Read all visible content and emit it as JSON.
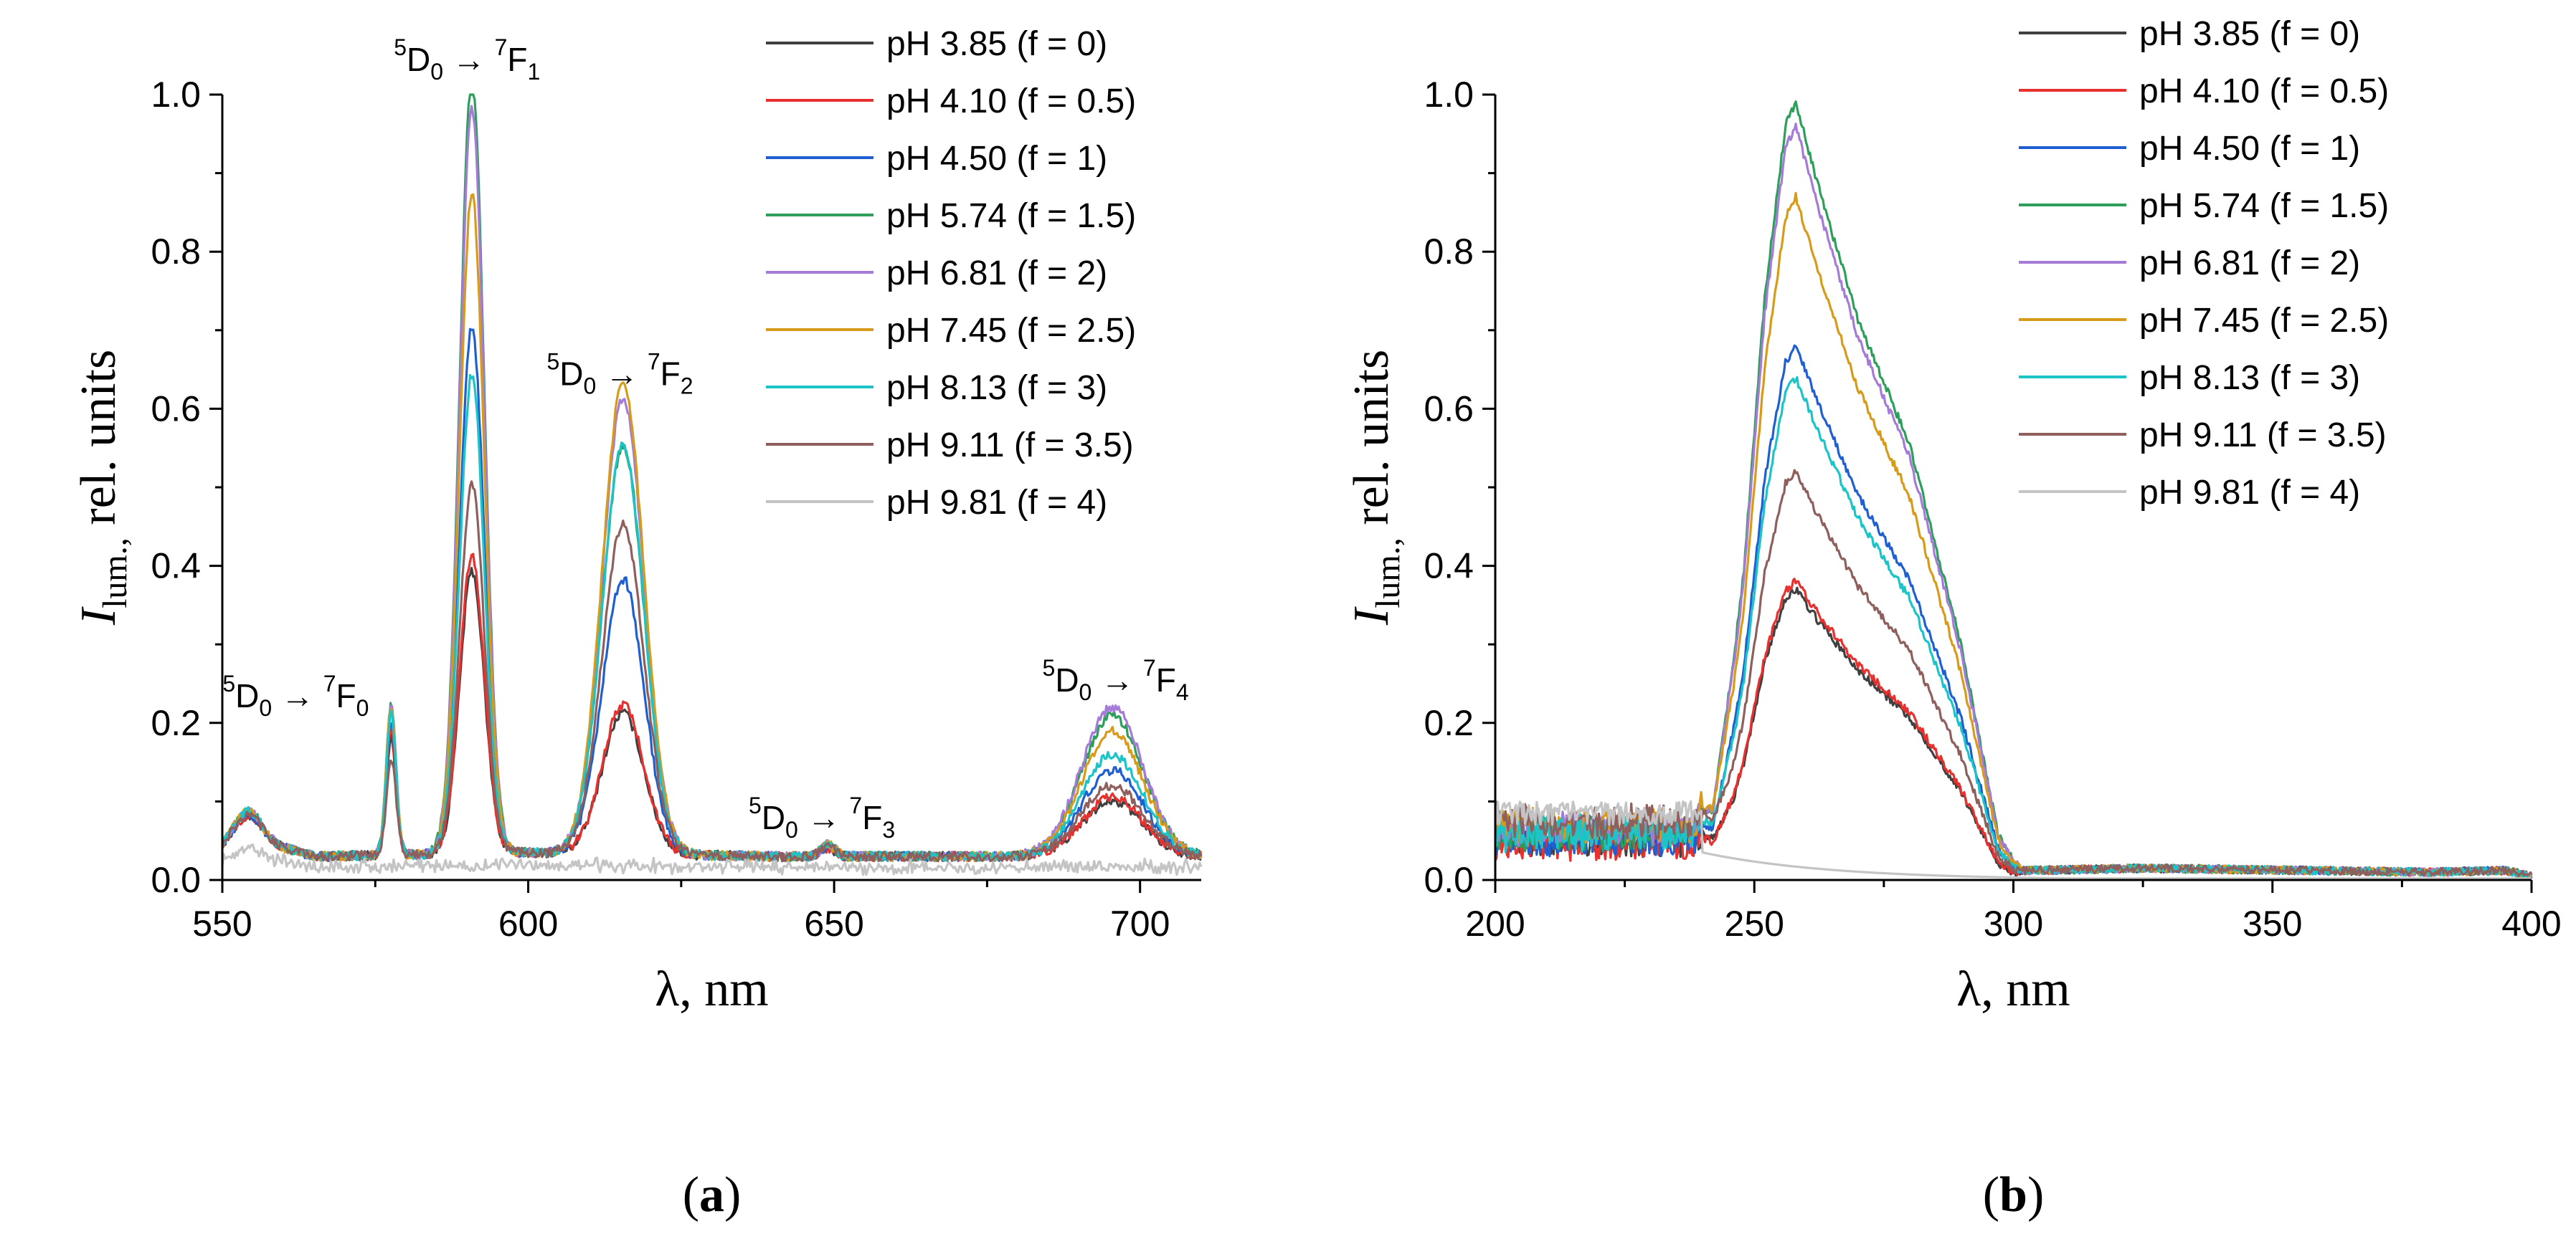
{
  "chart_data": [
    {
      "type": "line",
      "panel_label": "(a)",
      "xlabel": "λ, nm",
      "ylabel": {
        "symbol": "I",
        "subscript": "lum.,",
        "rest": "rel. units"
      },
      "xlim": [
        550,
        710
      ],
      "ylim": [
        0,
        1.0
      ],
      "xticks": [
        550,
        600,
        650,
        700
      ],
      "yticks": [
        0.0,
        0.2,
        0.4,
        0.6,
        0.8,
        1.0
      ],
      "tick_labels_x": [
        "550",
        "600",
        "650",
        "700"
      ],
      "tick_labels_y": [
        "0.0",
        "0.2",
        "0.4",
        "0.6",
        "0.8",
        "1.0"
      ],
      "grid": false,
      "legend_position": "top-right",
      "annotations": [
        {
          "sup1": "5",
          "base1": "D",
          "sub1": "0",
          "arrow": " → ",
          "sup2": "7",
          "base2": "F",
          "sub2": "0",
          "x": 562,
          "y": 0.22
        },
        {
          "sup1": "5",
          "base1": "D",
          "sub1": "0",
          "arrow": " → ",
          "sup2": "7",
          "base2": "F",
          "sub2": "1",
          "x": 590,
          "y": 1.03
        },
        {
          "sup1": "5",
          "base1": "D",
          "sub1": "0",
          "arrow": " → ",
          "sup2": "7",
          "base2": "F",
          "sub2": "2",
          "x": 615,
          "y": 0.63
        },
        {
          "sup1": "5",
          "base1": "D",
          "sub1": "0",
          "arrow": " → ",
          "sup2": "7",
          "base2": "F",
          "sub2": "3",
          "x": 648,
          "y": 0.065
        },
        {
          "sup1": "5",
          "base1": "D",
          "sub1": "0",
          "arrow": " → ",
          "sup2": "7",
          "base2": "F",
          "sub2": "4",
          "x": 696,
          "y": 0.24
        }
      ],
      "peak_model": {
        "baseline": [
          [
            550,
            0.04
          ],
          [
            556,
            0.05
          ],
          [
            565,
            0.03
          ],
          [
            600,
            0.035
          ],
          [
            640,
            0.03
          ],
          [
            680,
            0.03
          ],
          [
            710,
            0.03
          ]
        ],
        "peaks": [
          {
            "center": 554,
            "width": 2.2,
            "label": "bump"
          },
          {
            "center": 577.6,
            "width": 0.8,
            "label": "F0"
          },
          {
            "center": 590.8,
            "width": 2.0,
            "label": "F1"
          },
          {
            "center": 615.5,
            "width": 3.4,
            "label": "F2"
          },
          {
            "center": 649,
            "width": 1.2,
            "label": "F3"
          },
          {
            "center": 695.5,
            "width": 5.0,
            "label": "F4"
          }
        ]
      },
      "series": [
        {
          "name": "pH 3.85 (f = 0)",
          "color": "#404040",
          "peak_heights": [
            0.035,
            0.15,
            0.36,
            0.18,
            0.01,
            0.07
          ]
        },
        {
          "name": "pH 4.10 (f = 0.5)",
          "color": "#e8302e",
          "peak_heights": [
            0.035,
            0.16,
            0.38,
            0.19,
            0.01,
            0.075
          ]
        },
        {
          "name": "pH 4.50 (f = 1)",
          "color": "#1f5fd1",
          "peak_heights": [
            0.035,
            0.17,
            0.67,
            0.35,
            0.012,
            0.11
          ]
        },
        {
          "name": "pH 5.74 (f = 1.5)",
          "color": "#2e9e5b",
          "peak_heights": [
            0.04,
            0.19,
            0.99,
            0.52,
            0.015,
            0.18
          ]
        },
        {
          "name": "pH 6.81 (f = 2)",
          "color": "#a57bd8",
          "peak_heights": [
            0.04,
            0.19,
            0.95,
            0.58,
            0.015,
            0.19
          ]
        },
        {
          "name": "pH 7.45 (f = 2.5)",
          "color": "#d79b19",
          "peak_heights": [
            0.04,
            0.19,
            0.84,
            0.6,
            0.015,
            0.16
          ]
        },
        {
          "name": "pH 8.13 (f = 3)",
          "color": "#1cc4c8",
          "peak_heights": [
            0.04,
            0.18,
            0.61,
            0.52,
            0.013,
            0.13
          ]
        },
        {
          "name": "pH 9.11 (f = 3.5)",
          "color": "#8e5f5c",
          "peak_heights": [
            0.035,
            0.12,
            0.47,
            0.42,
            0.012,
            0.09
          ]
        },
        {
          "name": "pH 9.81 (f = 4)",
          "color": "#c4c4c4",
          "peak_heights": [
            0.015,
            0.0,
            0.0,
            0.0,
            0.0,
            0.0
          ]
        }
      ]
    },
    {
      "type": "line",
      "panel_label": "(b)",
      "xlabel": "λ, nm",
      "ylabel": {
        "symbol": "I",
        "subscript": "lum.,",
        "rest": "rel. units"
      },
      "xlim": [
        200,
        400
      ],
      "ylim": [
        0,
        1.0
      ],
      "xticks": [
        200,
        250,
        300,
        350,
        400
      ],
      "yticks": [
        0.0,
        0.2,
        0.4,
        0.6,
        0.8,
        1.0
      ],
      "tick_labels_x": [
        "200",
        "250",
        "300",
        "350",
        "400"
      ],
      "tick_labels_y": [
        "0.0",
        "0.2",
        "0.4",
        "0.6",
        "0.8",
        "1.0"
      ],
      "grid": false,
      "legend_position": "top-right",
      "band_model": {
        "shape": [
          [
            200,
            0.0
          ],
          [
            238,
            0.0
          ],
          [
            242,
            0.05
          ],
          [
            248,
            0.4
          ],
          [
            252,
            0.75
          ],
          [
            256,
            0.97
          ],
          [
            258,
            1.0
          ],
          [
            262,
            0.9
          ],
          [
            270,
            0.72
          ],
          [
            280,
            0.56
          ],
          [
            290,
            0.3
          ],
          [
            297,
            0.06
          ],
          [
            302,
            0.0
          ],
          [
            400,
            0.0
          ]
        ],
        "tail": [
          [
            200,
            0.0
          ],
          [
            300,
            0.0
          ],
          [
            302,
            0.012
          ],
          [
            325,
            0.015
          ],
          [
            380,
            0.01
          ],
          [
            395,
            0.012
          ],
          [
            400,
            0.005
          ]
        ]
      },
      "series": [
        {
          "name": "pH 3.85 (f = 0)",
          "color": "#404040",
          "peak": 0.37,
          "baseline": 0.05
        },
        {
          "name": "pH 4.10 (f = 0.5)",
          "color": "#e8302e",
          "peak": 0.38,
          "baseline": 0.045
        },
        {
          "name": "pH 4.50 (f = 1)",
          "color": "#1f5fd1",
          "peak": 0.68,
          "baseline": 0.05
        },
        {
          "name": "pH 5.74 (f = 1.5)",
          "color": "#2e9e5b",
          "peak": 0.99,
          "baseline": 0.06
        },
        {
          "name": "pH 6.81 (f = 2)",
          "color": "#a57bd8",
          "peak": 0.96,
          "baseline": 0.065
        },
        {
          "name": "pH 7.45 (f = 2.5)",
          "color": "#d79b19",
          "peak": 0.87,
          "baseline": 0.07
        },
        {
          "name": "pH 8.13 (f = 3)",
          "color": "#1cc4c8",
          "peak": 0.64,
          "baseline": 0.06
        },
        {
          "name": "pH 9.11 (f = 3.5)",
          "color": "#8e5f5c",
          "peak": 0.52,
          "baseline": 0.075
        },
        {
          "name": "pH 9.81 (f = 4)",
          "color": "#c4c4c4",
          "peak": 0.0,
          "baseline": 0.085
        }
      ]
    }
  ]
}
